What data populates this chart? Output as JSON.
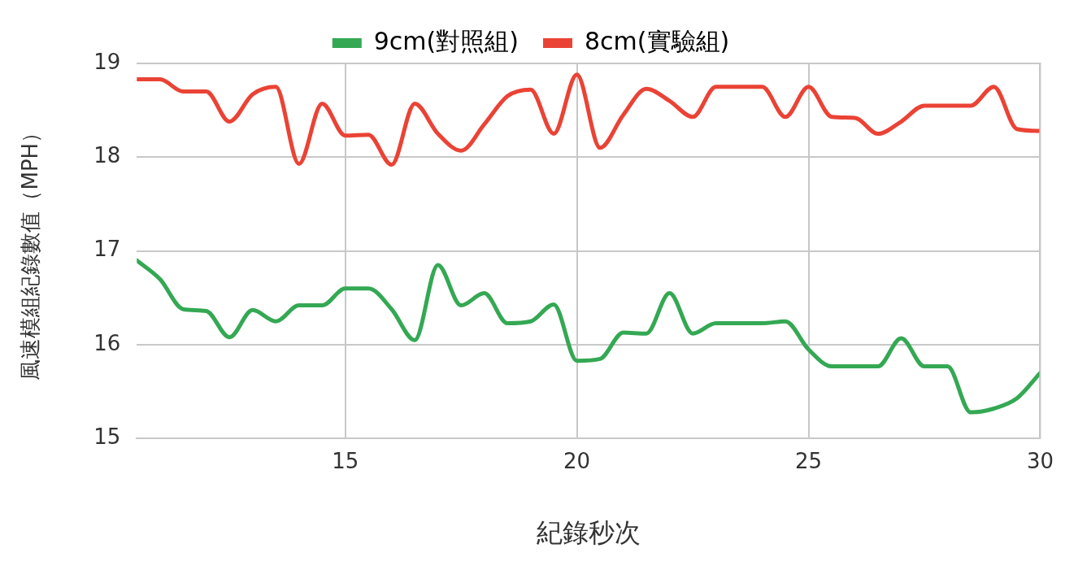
{
  "chart_data": {
    "type": "line",
    "xlabel": "紀錄秒次",
    "ylabel": "風速模組紀錄數值（MPH）",
    "x": [
      10.5,
      11,
      11.5,
      12,
      12.5,
      13,
      13.5,
      14,
      14.5,
      15,
      15.5,
      16,
      16.5,
      17,
      17.5,
      18,
      18.5,
      19,
      19.5,
      20,
      20.5,
      21,
      21.5,
      22,
      22.5,
      23,
      23.5,
      24,
      24.5,
      25,
      25.5,
      26,
      26.5,
      27,
      27.5,
      28,
      28.5,
      29,
      29.5,
      30
    ],
    "series": [
      {
        "name": "9cm(對照組)",
        "color": "#34a853",
        "values": [
          16.9,
          16.7,
          16.38,
          16.36,
          16.08,
          16.37,
          16.25,
          16.42,
          16.42,
          16.6,
          16.6,
          16.38,
          16.05,
          16.85,
          16.42,
          16.55,
          16.23,
          16.25,
          16.43,
          15.83,
          15.85,
          16.13,
          16.12,
          16.55,
          16.12,
          16.23,
          16.23,
          16.23,
          16.25,
          15.95,
          15.77,
          15.77,
          15.77,
          16.07,
          15.77,
          15.77,
          15.28,
          15.32,
          15.43,
          15.7
        ]
      },
      {
        "name": "8cm(實驗組)",
        "color": "#ea4335",
        "values": [
          18.83,
          18.83,
          18.7,
          18.7,
          18.38,
          18.67,
          18.75,
          17.93,
          18.57,
          18.23,
          18.24,
          17.92,
          18.57,
          18.25,
          18.07,
          18.35,
          18.65,
          18.72,
          18.25,
          18.88,
          18.1,
          18.45,
          18.73,
          18.6,
          18.43,
          18.75,
          18.75,
          18.75,
          18.43,
          18.75,
          18.43,
          18.42,
          18.25,
          18.38,
          18.55,
          18.55,
          18.55,
          18.75,
          18.3,
          18.28
        ]
      }
    ],
    "xlim": [
      10.5,
      30
    ],
    "xticks": [
      15,
      20,
      25,
      30
    ],
    "ylim": [
      15,
      19
    ],
    "yticks": [
      15,
      16,
      17,
      18,
      19
    ],
    "grid": true,
    "legend": "top",
    "marker": "none",
    "line_style": "solid"
  }
}
